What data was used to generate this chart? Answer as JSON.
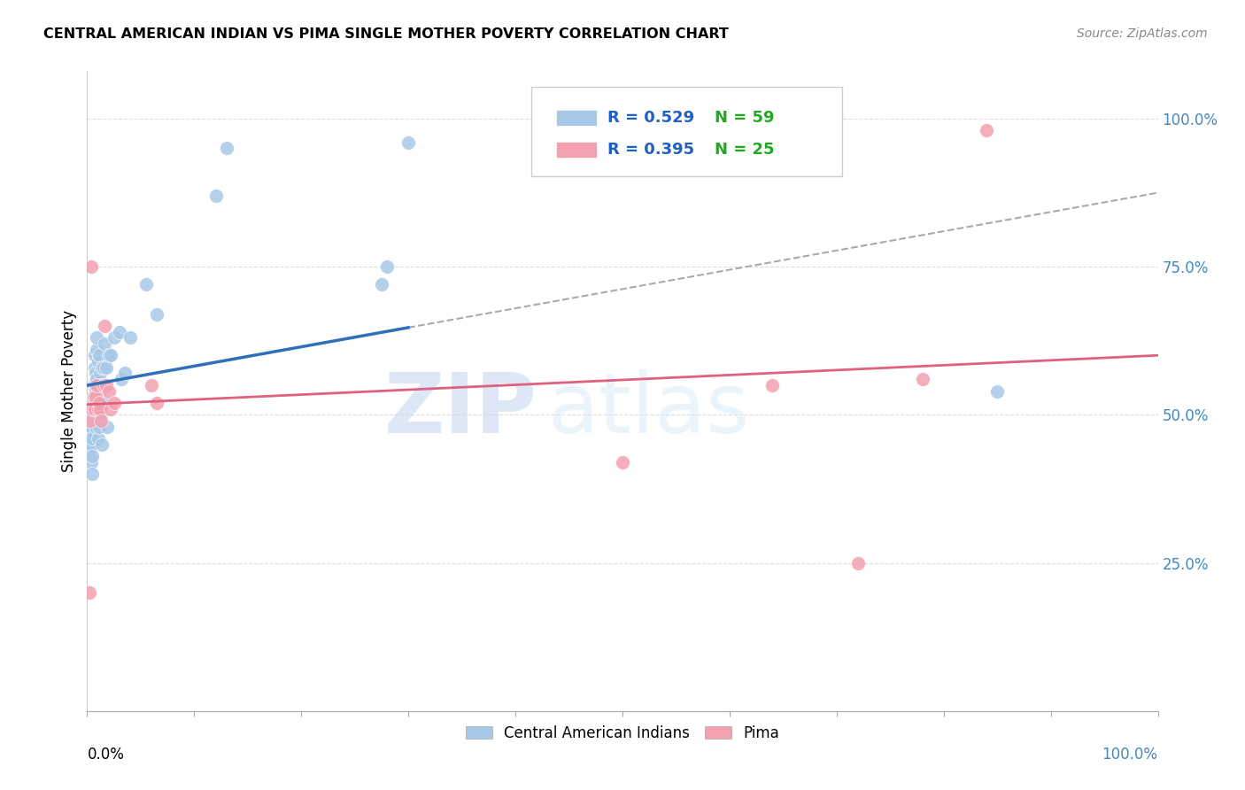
{
  "title": "CENTRAL AMERICAN INDIAN VS PIMA SINGLE MOTHER POVERTY CORRELATION CHART",
  "source": "Source: ZipAtlas.com",
  "ylabel": "Single Mother Poverty",
  "legend_blue_r": "R = 0.529",
  "legend_blue_n": "N = 59",
  "legend_pink_r": "R = 0.395",
  "legend_pink_n": "N = 25",
  "legend_blue_label": "Central American Indians",
  "legend_pink_label": "Pima",
  "blue_color": "#a8c8e8",
  "pink_color": "#f4a0b0",
  "blue_line_color": "#3070b8",
  "pink_line_color": "#e06080",
  "r_color": "#2060c0",
  "n_color": "#20aa20",
  "watermark_zip": "ZIP",
  "watermark_atlas": "atlas",
  "blue_x": [
    0.002,
    0.002,
    0.003,
    0.003,
    0.004,
    0.004,
    0.004,
    0.005,
    0.005,
    0.005,
    0.005,
    0.006,
    0.006,
    0.006,
    0.007,
    0.007,
    0.007,
    0.008,
    0.008,
    0.008,
    0.008,
    0.009,
    0.009,
    0.009,
    0.01,
    0.01,
    0.01,
    0.01,
    0.011,
    0.011,
    0.011,
    0.012,
    0.012,
    0.013,
    0.013,
    0.014,
    0.014,
    0.015,
    0.015,
    0.016,
    0.016,
    0.017,
    0.018,
    0.019,
    0.02,
    0.022,
    0.025,
    0.03,
    0.032,
    0.035,
    0.04,
    0.055,
    0.065,
    0.12,
    0.13,
    0.275,
    0.28,
    0.3,
    0.85
  ],
  "blue_y": [
    0.43,
    0.46,
    0.44,
    0.47,
    0.45,
    0.42,
    0.48,
    0.46,
    0.5,
    0.43,
    0.4,
    0.49,
    0.52,
    0.55,
    0.51,
    0.58,
    0.6,
    0.57,
    0.55,
    0.54,
    0.48,
    0.56,
    0.61,
    0.63,
    0.59,
    0.55,
    0.5,
    0.46,
    0.6,
    0.53,
    0.48,
    0.57,
    0.52,
    0.55,
    0.5,
    0.58,
    0.45,
    0.58,
    0.55,
    0.62,
    0.52,
    0.55,
    0.58,
    0.48,
    0.6,
    0.6,
    0.63,
    0.64,
    0.56,
    0.57,
    0.63,
    0.72,
    0.67,
    0.87,
    0.95,
    0.72,
    0.75,
    0.96,
    0.54
  ],
  "pink_x": [
    0.002,
    0.003,
    0.004,
    0.005,
    0.006,
    0.007,
    0.008,
    0.009,
    0.01,
    0.011,
    0.012,
    0.013,
    0.015,
    0.016,
    0.018,
    0.02,
    0.022,
    0.025,
    0.06,
    0.065,
    0.5,
    0.64,
    0.72,
    0.78,
    0.84
  ],
  "pink_y": [
    0.2,
    0.49,
    0.75,
    0.51,
    0.53,
    0.51,
    0.53,
    0.55,
    0.51,
    0.52,
    0.51,
    0.49,
    0.55,
    0.65,
    0.55,
    0.54,
    0.51,
    0.52,
    0.55,
    0.52,
    0.42,
    0.55,
    0.25,
    0.56,
    0.98
  ]
}
